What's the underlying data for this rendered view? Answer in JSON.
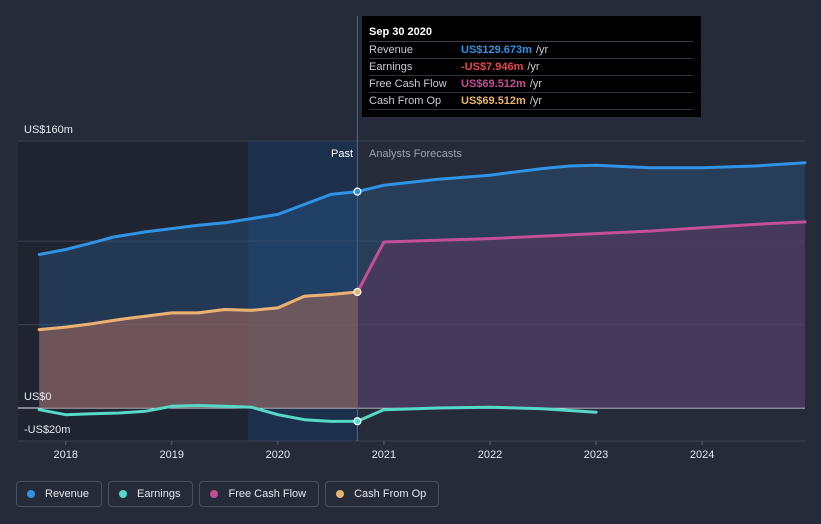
{
  "chart_data": {
    "type": "area",
    "y_axis": {
      "top_label": "US$160m",
      "zero_label": "US$0",
      "bottom_label": "-US$20m",
      "ylim": [
        -20,
        160
      ]
    },
    "x_ticks": [
      "2018",
      "2019",
      "2020",
      "2021",
      "2022",
      "2023",
      "2024"
    ],
    "xlim": [
      2017.55,
      2024.97
    ],
    "section_labels": {
      "past": "Past",
      "forecast": "Analysts Forecasts"
    },
    "divider_x": 2020.75,
    "series": [
      {
        "name": "Revenue",
        "color": "#2f93e6",
        "fill": true,
        "points": [
          [
            2017.75,
            92
          ],
          [
            2018.0,
            95
          ],
          [
            2018.25,
            99
          ],
          [
            2018.45,
            102.5
          ],
          [
            2018.75,
            105.5
          ],
          [
            2019.0,
            107.5
          ],
          [
            2019.25,
            109.5
          ],
          [
            2019.5,
            111
          ],
          [
            2019.75,
            113.5
          ],
          [
            2020.0,
            116
          ],
          [
            2020.25,
            122
          ],
          [
            2020.5,
            128
          ],
          [
            2020.75,
            129.673
          ],
          [
            2021.0,
            133.5
          ],
          [
            2021.5,
            137
          ],
          [
            2022.0,
            139.5
          ],
          [
            2022.5,
            143.5
          ],
          [
            2022.75,
            145
          ],
          [
            2023.0,
            145.5
          ],
          [
            2023.5,
            144
          ],
          [
            2024.0,
            144
          ],
          [
            2024.5,
            145
          ],
          [
            2024.97,
            147
          ]
        ]
      },
      {
        "name": "Earnings",
        "color": "#56d9c7",
        "fill": false,
        "points": [
          [
            2017.75,
            -1
          ],
          [
            2018.0,
            -4
          ],
          [
            2018.25,
            -3.5
          ],
          [
            2018.5,
            -3
          ],
          [
            2018.75,
            -2
          ],
          [
            2019.0,
            1
          ],
          [
            2019.25,
            1.5
          ],
          [
            2019.5,
            1
          ],
          [
            2019.75,
            0.5
          ],
          [
            2020.0,
            -4
          ],
          [
            2020.25,
            -7
          ],
          [
            2020.5,
            -8
          ],
          [
            2020.75,
            -7.946
          ],
          [
            2021.0,
            -1
          ],
          [
            2021.5,
            0
          ],
          [
            2022.0,
            0.5
          ],
          [
            2022.5,
            -0.5
          ],
          [
            2023.0,
            -2.5
          ]
        ]
      },
      {
        "name": "Free Cash Flow",
        "color": "#c34f97",
        "fill": true,
        "points": [
          [
            2017.75,
            47
          ],
          [
            2018.0,
            48.5
          ],
          [
            2018.25,
            50.5
          ],
          [
            2018.5,
            53
          ],
          [
            2018.75,
            55
          ],
          [
            2019.0,
            57
          ],
          [
            2019.25,
            57
          ],
          [
            2019.5,
            59
          ],
          [
            2019.75,
            58.5
          ],
          [
            2020.0,
            60
          ],
          [
            2020.25,
            67
          ],
          [
            2020.5,
            68
          ],
          [
            2020.75,
            69.512
          ],
          [
            2021.0,
            99.5
          ],
          [
            2021.5,
            100.5
          ],
          [
            2022.0,
            101.5
          ],
          [
            2022.5,
            103
          ],
          [
            2023.0,
            104.5
          ],
          [
            2023.5,
            106
          ],
          [
            2024.0,
            108
          ],
          [
            2024.5,
            110
          ],
          [
            2024.97,
            111.5
          ]
        ]
      },
      {
        "name": "Cash From Op",
        "color": "#e8b370",
        "fill": true,
        "points": [
          [
            2017.75,
            47
          ],
          [
            2018.0,
            48.5
          ],
          [
            2018.25,
            50.5
          ],
          [
            2018.5,
            53
          ],
          [
            2018.75,
            55
          ],
          [
            2019.0,
            57
          ],
          [
            2019.25,
            57
          ],
          [
            2019.5,
            59
          ],
          [
            2019.75,
            58.5
          ],
          [
            2020.0,
            60
          ],
          [
            2020.25,
            67
          ],
          [
            2020.5,
            68
          ],
          [
            2020.75,
            69.512
          ]
        ]
      }
    ]
  },
  "tooltip": {
    "title": "Sep 30 2020",
    "rows": [
      {
        "name": "Revenue",
        "value": "US$129.673m",
        "unit": "/yr",
        "color": "#2f93e6"
      },
      {
        "name": "Earnings",
        "value": "-US$7.946m",
        "unit": "/yr",
        "color": "#e5484d"
      },
      {
        "name": "Free Cash Flow",
        "value": "US$69.512m",
        "unit": "/yr",
        "color": "#c34f97"
      },
      {
        "name": "Cash From Op",
        "value": "US$69.512m",
        "unit": "/yr",
        "color": "#e8b370"
      }
    ]
  },
  "legend": [
    {
      "label": "Revenue",
      "color": "#2f93e6"
    },
    {
      "label": "Earnings",
      "color": "#56d9c7"
    },
    {
      "label": "Free Cash Flow",
      "color": "#c34f97"
    },
    {
      "label": "Cash From Op",
      "color": "#e8b370"
    }
  ]
}
